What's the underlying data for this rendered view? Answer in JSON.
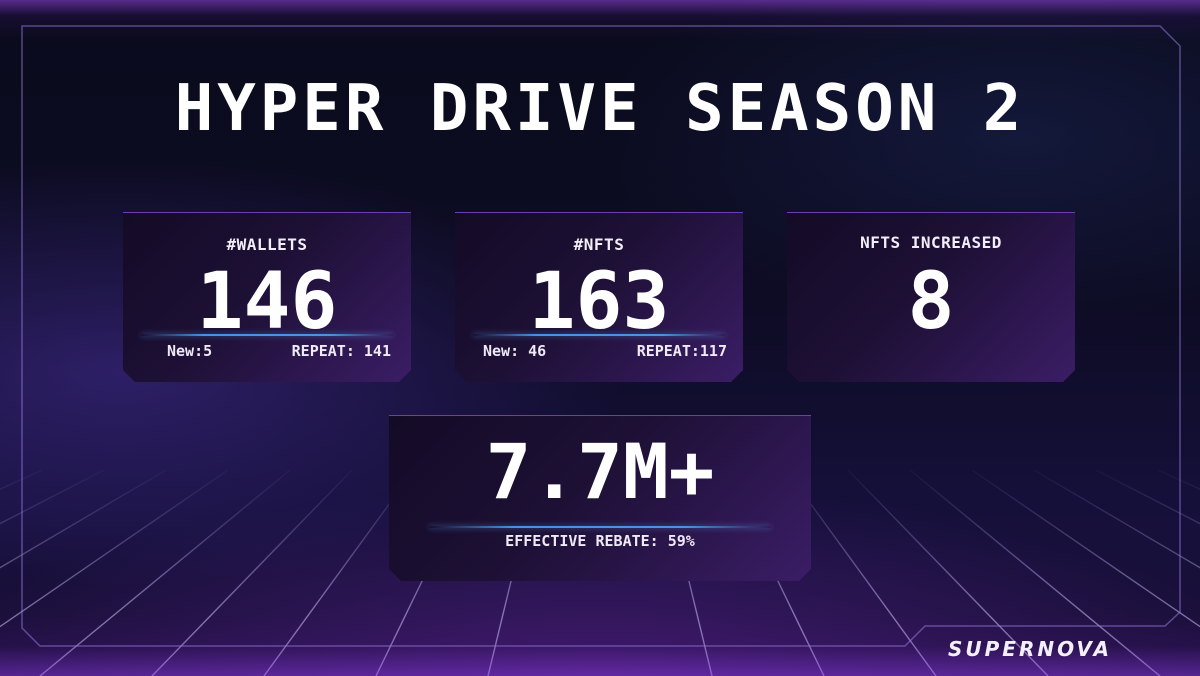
{
  "title": "HYPER DRIVE SEASON 2",
  "cards": {
    "wallets": {
      "label": "#WALLETS",
      "value": "146",
      "new": "New:5",
      "repeat": "REPEAT: 141"
    },
    "nfts": {
      "label": "#NFTS",
      "value": "163",
      "new": "New: 46",
      "repeat": "REPEAT:117"
    },
    "increased": {
      "label": "NFTS INCREASED",
      "value": "8"
    },
    "volume": {
      "value": "7.7M+",
      "rebate": "EFFECTIVE REBATE: 59%"
    }
  },
  "brand": {
    "logo_text": "SUPERNOVA"
  },
  "colors": {
    "accent_purple": "#7b3fd0",
    "divider_blue": "#50a0f0",
    "text": "#ffffff"
  }
}
